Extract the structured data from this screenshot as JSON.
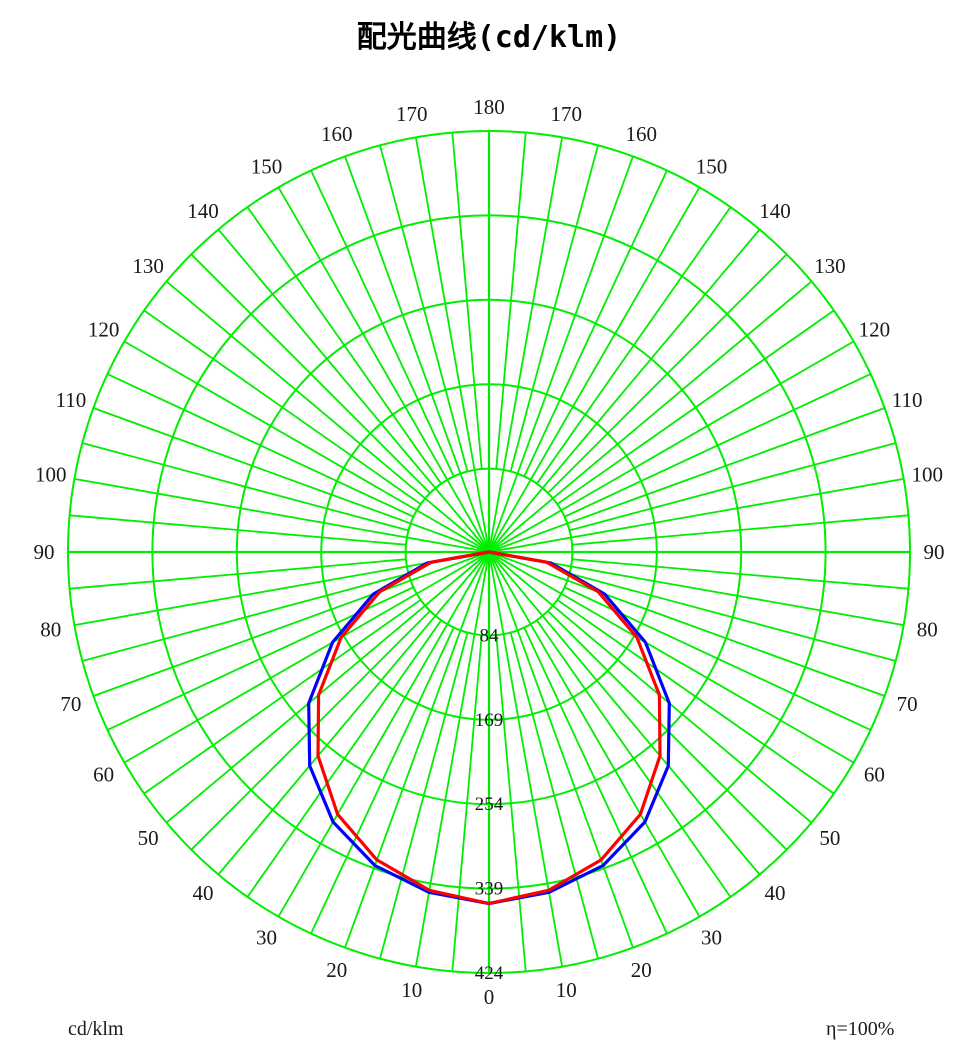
{
  "chart_data": {
    "type": "polar",
    "title": "配光曲线(cd/klm)",
    "unit_label": "cd/klm",
    "efficiency_label": "η=100%",
    "angle_ticks": [
      0,
      10,
      20,
      30,
      40,
      50,
      60,
      70,
      80,
      90,
      100,
      110,
      120,
      130,
      140,
      150,
      160,
      170,
      180
    ],
    "radial_ticks": [
      84,
      169,
      254,
      339,
      424
    ],
    "r_max": 424,
    "grid_color": "#00ee00",
    "series": [
      {
        "color": "#0000ff",
        "angles": [
          0,
          10,
          20,
          30,
          40,
          50,
          60,
          70,
          80,
          90
        ],
        "values": [
          354,
          348,
          336,
          314,
          281,
          237,
          182,
          124,
          63,
          0
        ]
      },
      {
        "color": "#ff0000",
        "angles": [
          0,
          10,
          20,
          30,
          40,
          50,
          60,
          70,
          80,
          90
        ],
        "values": [
          354,
          346,
          330,
          305,
          268,
          224,
          172,
          117,
          59,
          0
        ]
      }
    ]
  }
}
